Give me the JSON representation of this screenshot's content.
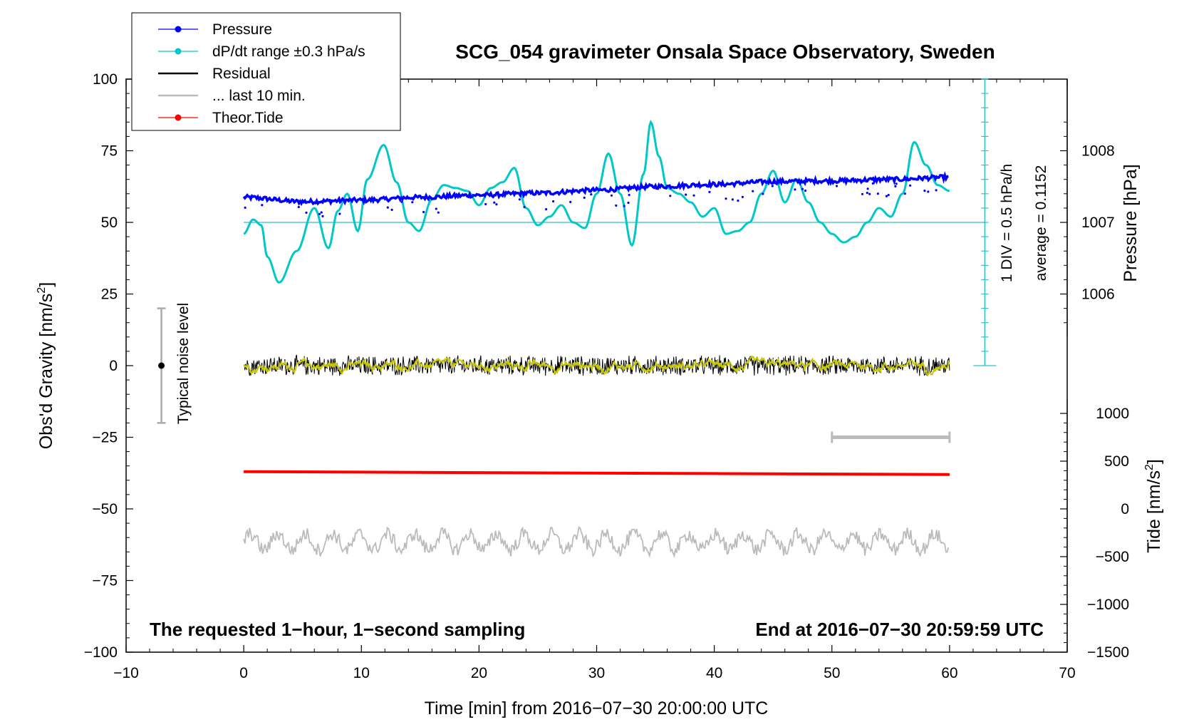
{
  "chart_data": {
    "type": "line",
    "title": "SCG_054 gravimeter Onsala Space Observatory, Sweden",
    "xlabel": "Time [min] from 2016−07−30 20:00:00 UTC",
    "ylabel": "Obs'd Gravity [nm/s²]",
    "ylabel_main": "Obs'd Gravity [nm/s",
    "ylabel_sup": "2",
    "ylabel_end": "]",
    "xlim": [
      -10,
      70
    ],
    "ylim": [
      -100,
      100
    ],
    "x_ticks": [
      -10,
      0,
      10,
      20,
      30,
      40,
      50,
      60,
      70
    ],
    "x_tick_labels": [
      "−10",
      "0",
      "10",
      "20",
      "30",
      "40",
      "50",
      "60",
      "70"
    ],
    "y_ticks": [
      -100,
      -75,
      -50,
      -25,
      0,
      25,
      50,
      75,
      100
    ],
    "y_tick_labels": [
      "−100",
      "−75",
      "−50",
      "−25",
      "0",
      "25",
      "50",
      "75",
      "100"
    ],
    "pressure_axis": {
      "label": "Pressure [hPa]",
      "ticks": [
        1006,
        1007,
        1008
      ],
      "tick_labels": [
        "1006",
        "1007",
        "1008"
      ],
      "gravity_at_1007": 50,
      "gravity_per_hpa": 25
    },
    "tide_axis": {
      "label": "Tide [nm/s²]",
      "label_main": "Tide [nm/s",
      "label_sup": "2",
      "label_end": "]",
      "ticks": [
        1000,
        500,
        0,
        -500,
        -1000,
        -1500
      ],
      "tick_labels": [
        "1000",
        "500",
        "0",
        "−500",
        "−1000",
        "−1500"
      ],
      "gravity_at_0": -50,
      "gravity_per_unit": 0.03333
    },
    "dpdt_scale": {
      "label_line1": "1 DIV = 0.5 hPa/h",
      "label_line2": "average = 0.1152",
      "x": 63,
      "y_range": [
        0,
        100
      ],
      "tick_step": 5
    },
    "noise_level": {
      "label": "Typical noise level",
      "x": -7,
      "y": 0,
      "y_range": [
        -20,
        20
      ]
    },
    "last10_marker": {
      "x_range": [
        50,
        60
      ],
      "y": -25
    },
    "reference_line": {
      "y": 50
    },
    "legend": [
      {
        "label": "Pressure",
        "color": "#0000ff",
        "style": "line-dot"
      },
      {
        "label": "dP/dt range ±0.3 hPa/s",
        "color": "#00c8c8",
        "style": "line-dot"
      },
      {
        "label": "Residual",
        "color": "#000000",
        "style": "line"
      },
      {
        "label": "... last 10 min.",
        "color": "#bbbbbb",
        "style": "line"
      },
      {
        "label": "Theor.Tide",
        "color": "#ff0000",
        "style": "line-dot"
      }
    ],
    "annotations": {
      "left": "The requested 1−hour, 1−second sampling",
      "right": "End at 2016−07−30 20:59:59 UTC"
    },
    "series": [
      {
        "name": "Pressure",
        "color": "#0000ff",
        "unit": "hPa",
        "x": [
          0,
          5,
          10,
          15,
          20,
          25,
          30,
          35,
          40,
          45,
          50,
          55,
          60
        ],
        "values": [
          1007.35,
          1007.29,
          1007.31,
          1007.35,
          1007.38,
          1007.41,
          1007.45,
          1007.5,
          1007.53,
          1007.57,
          1007.58,
          1007.6,
          1007.63
        ]
      },
      {
        "name": "dP/dt",
        "color": "#00c8c8",
        "x": [
          0,
          0.8,
          1.5,
          2,
          3,
          4.5,
          6,
          7.2,
          8,
          8.8,
          9.7,
          10.5,
          11.9,
          13,
          14,
          14.9,
          16,
          17,
          18,
          19,
          20,
          21,
          22,
          23,
          24,
          25,
          26,
          27,
          28,
          29,
          30,
          31,
          32,
          33,
          34,
          34.6,
          35.3,
          36,
          37,
          38,
          39,
          40,
          41,
          42,
          43,
          44,
          45,
          46,
          47,
          48,
          49,
          50,
          51,
          52,
          53,
          54,
          55,
          56,
          57,
          58,
          59,
          60
        ],
        "values": [
          46,
          51,
          49,
          38,
          29,
          40,
          55,
          41,
          54,
          60,
          47,
          65,
          77,
          64,
          50,
          47,
          58,
          63,
          62,
          61,
          56,
          62,
          64,
          69,
          55,
          49,
          52,
          56,
          50,
          48,
          60,
          74,
          60,
          42,
          67,
          85,
          73,
          62,
          60,
          57,
          52,
          55,
          46,
          47,
          50,
          60,
          68,
          57,
          65,
          57,
          50,
          46,
          43,
          45,
          50,
          55,
          52,
          60,
          78,
          70,
          63,
          61
        ]
      },
      {
        "name": "Residual",
        "color": "#000000",
        "x_range": [
          0,
          60
        ],
        "typical_amplitude": 3,
        "center": 0
      },
      {
        "name": "... last 10 min.",
        "color": "#bbbbbb",
        "x_range": [
          0,
          60
        ],
        "typical_amplitude": 4,
        "center": -61.5
      },
      {
        "name": "Theor.Tide",
        "color": "#ff0000",
        "unit": "nm/s²",
        "x": [
          0,
          20,
          40,
          60
        ],
        "values": [
          390,
          380,
          370,
          360
        ]
      }
    ]
  }
}
